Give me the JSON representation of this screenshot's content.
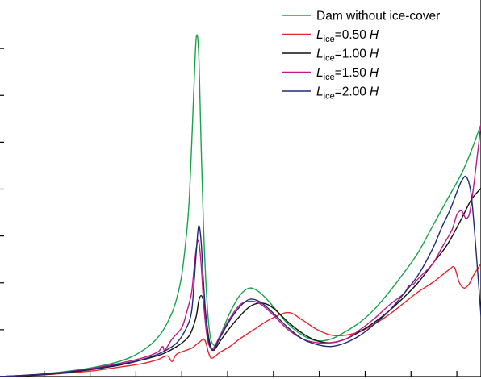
{
  "chart_data": {
    "type": "line",
    "title": "",
    "xlabel": "",
    "ylabel": "",
    "xlim": [
      0,
      1
    ],
    "ylim": [
      0,
      1
    ],
    "grid": false,
    "legend_placement": "top-right",
    "series": [
      {
        "name": "Dam without ice-cover",
        "color": "#1aa34a",
        "x": [
          0.0,
          0.05,
          0.1,
          0.15,
          0.2,
          0.25,
          0.28,
          0.3,
          0.32,
          0.34,
          0.36,
          0.37,
          0.38,
          0.39,
          0.395,
          0.4,
          0.405,
          0.41,
          0.415,
          0.42,
          0.425,
          0.43,
          0.435,
          0.44,
          0.445,
          0.45,
          0.46,
          0.48,
          0.5,
          0.52,
          0.54,
          0.56,
          0.58,
          0.6,
          0.63,
          0.66,
          0.69,
          0.72,
          0.75,
          0.78,
          0.81,
          0.84,
          0.87,
          0.9,
          0.93,
          0.96,
          0.98,
          1.0
        ],
        "y": [
          0.0,
          0.003,
          0.008,
          0.015,
          0.025,
          0.04,
          0.055,
          0.07,
          0.09,
          0.12,
          0.17,
          0.21,
          0.27,
          0.38,
          0.46,
          0.6,
          0.76,
          0.9,
          0.86,
          0.62,
          0.4,
          0.25,
          0.15,
          0.1,
          0.085,
          0.085,
          0.11,
          0.17,
          0.215,
          0.235,
          0.225,
          0.2,
          0.17,
          0.14,
          0.11,
          0.095,
          0.1,
          0.12,
          0.145,
          0.18,
          0.225,
          0.275,
          0.33,
          0.4,
          0.47,
          0.54,
          0.6,
          0.67
        ]
      },
      {
        "name": "=0.50",
        "color": "#e8262e",
        "x": [
          0.0,
          0.05,
          0.1,
          0.15,
          0.2,
          0.25,
          0.3,
          0.33,
          0.35,
          0.36,
          0.37,
          0.4,
          0.41,
          0.42,
          0.425,
          0.43,
          0.435,
          0.44,
          0.445,
          0.45,
          0.46,
          0.48,
          0.5,
          0.53,
          0.56,
          0.6,
          0.63,
          0.66,
          0.69,
          0.72,
          0.75,
          0.78,
          0.81,
          0.84,
          0.87,
          0.9,
          0.92,
          0.935,
          0.945,
          0.955,
          0.965,
          0.975,
          0.985,
          1.0
        ],
        "y": [
          0.0,
          0.002,
          0.005,
          0.01,
          0.016,
          0.025,
          0.035,
          0.045,
          0.055,
          0.04,
          0.06,
          0.075,
          0.085,
          0.095,
          0.1,
          0.09,
          0.065,
          0.05,
          0.05,
          0.055,
          0.065,
          0.08,
          0.1,
          0.125,
          0.15,
          0.17,
          0.15,
          0.125,
          0.11,
          0.11,
          0.12,
          0.14,
          0.165,
          0.195,
          0.225,
          0.25,
          0.27,
          0.285,
          0.29,
          0.25,
          0.235,
          0.245,
          0.27,
          0.3
        ]
      },
      {
        "name": "=1.00",
        "color": "#111111",
        "x": [
          0.0,
          0.05,
          0.1,
          0.15,
          0.2,
          0.25,
          0.3,
          0.34,
          0.37,
          0.39,
          0.4,
          0.41,
          0.415,
          0.42,
          0.425,
          0.43,
          0.435,
          0.44,
          0.445,
          0.45,
          0.46,
          0.48,
          0.5,
          0.52,
          0.54,
          0.56,
          0.58,
          0.6,
          0.63,
          0.66,
          0.69,
          0.72,
          0.75,
          0.78,
          0.81,
          0.84,
          0.87,
          0.9,
          0.93,
          0.96,
          0.98,
          1.0
        ],
        "y": [
          0.0,
          0.002,
          0.006,
          0.012,
          0.02,
          0.03,
          0.045,
          0.06,
          0.08,
          0.1,
          0.12,
          0.16,
          0.2,
          0.215,
          0.2,
          0.16,
          0.11,
          0.08,
          0.07,
          0.075,
          0.095,
          0.13,
          0.16,
          0.185,
          0.195,
          0.19,
          0.17,
          0.145,
          0.115,
          0.095,
          0.09,
          0.1,
          0.12,
          0.145,
          0.175,
          0.21,
          0.25,
          0.3,
          0.35,
          0.42,
          0.47,
          0.5
        ]
      },
      {
        "name": "=1.50",
        "color": "#c2188c",
        "x": [
          0.0,
          0.05,
          0.1,
          0.15,
          0.2,
          0.25,
          0.3,
          0.33,
          0.34,
          0.345,
          0.36,
          0.38,
          0.39,
          0.4,
          0.405,
          0.41,
          0.415,
          0.42,
          0.425,
          0.43,
          0.435,
          0.44,
          0.445,
          0.45,
          0.46,
          0.48,
          0.5,
          0.52,
          0.54,
          0.56,
          0.58,
          0.6,
          0.63,
          0.66,
          0.69,
          0.72,
          0.75,
          0.78,
          0.81,
          0.84,
          0.85,
          0.86,
          0.87,
          0.9,
          0.92,
          0.94,
          0.95,
          0.96,
          0.97,
          0.98,
          1.0
        ],
        "y": [
          0.0,
          0.003,
          0.007,
          0.014,
          0.023,
          0.035,
          0.05,
          0.065,
          0.08,
          0.07,
          0.1,
          0.13,
          0.17,
          0.22,
          0.28,
          0.34,
          0.36,
          0.3,
          0.2,
          0.13,
          0.09,
          0.075,
          0.075,
          0.085,
          0.11,
          0.155,
          0.19,
          0.2,
          0.195,
          0.175,
          0.15,
          0.125,
          0.1,
          0.09,
          0.09,
          0.1,
          0.125,
          0.155,
          0.19,
          0.22,
          0.24,
          0.245,
          0.26,
          0.3,
          0.345,
          0.39,
          0.43,
          0.44,
          0.42,
          0.46,
          0.67
        ]
      },
      {
        "name": "=2.00",
        "color": "#1f2a78",
        "x": [
          0.0,
          0.05,
          0.1,
          0.15,
          0.2,
          0.25,
          0.3,
          0.34,
          0.37,
          0.39,
          0.4,
          0.405,
          0.41,
          0.415,
          0.42,
          0.425,
          0.43,
          0.435,
          0.44,
          0.445,
          0.45,
          0.46,
          0.48,
          0.5,
          0.52,
          0.54,
          0.56,
          0.58,
          0.6,
          0.63,
          0.66,
          0.69,
          0.72,
          0.75,
          0.78,
          0.81,
          0.84,
          0.87,
          0.9,
          0.92,
          0.935,
          0.95,
          0.96,
          0.97,
          0.98,
          0.99,
          1.0
        ],
        "y": [
          0.0,
          0.003,
          0.007,
          0.013,
          0.021,
          0.032,
          0.046,
          0.065,
          0.09,
          0.13,
          0.17,
          0.24,
          0.33,
          0.4,
          0.36,
          0.25,
          0.16,
          0.1,
          0.075,
          0.07,
          0.08,
          0.105,
          0.15,
          0.185,
          0.205,
          0.2,
          0.18,
          0.155,
          0.13,
          0.1,
          0.085,
          0.08,
          0.09,
          0.11,
          0.14,
          0.175,
          0.22,
          0.27,
          0.34,
          0.4,
          0.44,
          0.49,
          0.52,
          0.53,
          0.48,
          0.33,
          0.16
        ]
      }
    ],
    "legend": [
      {
        "series": 0,
        "main": "Dam without ice-cover",
        "italic": "",
        "sub": "",
        "value": "",
        "unit": ""
      },
      {
        "series": 1,
        "main": "",
        "italic": "L",
        "sub": "ice",
        "value": "=0.50",
        "unit": "H"
      },
      {
        "series": 2,
        "main": "",
        "italic": "L",
        "sub": "ice",
        "value": "=1.00",
        "unit": "H"
      },
      {
        "series": 3,
        "main": "",
        "italic": "L",
        "sub": "ice",
        "value": "=1.50",
        "unit": "H"
      },
      {
        "series": 4,
        "main": "",
        "italic": "L",
        "sub": "ice",
        "value": "=2.00",
        "unit": "H"
      }
    ]
  }
}
